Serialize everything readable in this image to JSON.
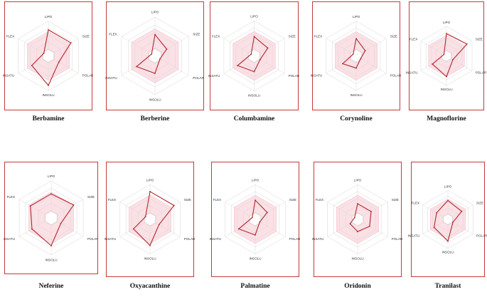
{
  "axes": [
    "LIPO",
    "SIZE",
    "POLAR",
    "INSOLU",
    "INSATU",
    "FLEX"
  ],
  "band": {
    "upper": [
      0.7,
      0.7,
      0.7,
      0.7,
      0.7,
      0.7
    ],
    "lower": [
      0.18,
      0.18,
      0.18,
      0.18,
      0.18,
      0.18
    ]
  },
  "chart_data": [
    {
      "type": "radar",
      "title": "Berbamine",
      "axes": [
        "LIPO",
        "SIZE",
        "POLAR",
        "INSOLU",
        "INSATU",
        "FLEX"
      ],
      "values": [
        0.75,
        0.75,
        0.35,
        0.85,
        0.55,
        0.15
      ]
    },
    {
      "type": "radar",
      "title": "Berberine",
      "axes": [
        "LIPO",
        "SIZE",
        "POLAR",
        "INSOLU",
        "INSATU",
        "FLEX"
      ],
      "values": [
        0.55,
        0.35,
        0.15,
        0.45,
        0.55,
        0.1
      ]
    },
    {
      "type": "radar",
      "title": "Columbamine",
      "axes": [
        "LIPO",
        "SIZE",
        "POLAR",
        "INSOLU",
        "INSATU",
        "FLEX"
      ],
      "values": [
        0.55,
        0.45,
        0.2,
        0.45,
        0.55,
        0.1
      ]
    },
    {
      "type": "radar",
      "title": "Corynoline",
      "axes": [
        "LIPO",
        "SIZE",
        "POLAR",
        "INSOLU",
        "INSATU",
        "FLEX"
      ],
      "values": [
        0.5,
        0.3,
        0.15,
        0.35,
        0.45,
        0.1
      ]
    },
    {
      "type": "radar",
      "title": "Magnoflorine",
      "axes": [
        "LIPO",
        "SIZE",
        "POLAR",
        "INSOLU",
        "INSATU",
        "FLEX"
      ],
      "values": [
        0.75,
        0.8,
        0.25,
        0.7,
        0.55,
        0.1
      ]
    },
    {
      "type": "radar",
      "title": "Neferine",
      "axes": [
        "LIPO",
        "SIZE",
        "POLAR",
        "INSOLU",
        "INSATU",
        "FLEX"
      ],
      "values": [
        0.65,
        0.7,
        0.3,
        0.75,
        0.6,
        0.65
      ]
    },
    {
      "type": "radar",
      "title": "Oxyacanthine",
      "axes": [
        "LIPO",
        "SIZE",
        "POLAR",
        "INSOLU",
        "INSATU",
        "FLEX"
      ],
      "values": [
        0.8,
        0.8,
        0.3,
        0.75,
        0.55,
        0.15
      ]
    },
    {
      "type": "radar",
      "title": "Palmatine",
      "axes": [
        "LIPO",
        "SIZE",
        "POLAR",
        "INSOLU",
        "INSATU",
        "FLEX"
      ],
      "values": [
        0.55,
        0.4,
        0.15,
        0.45,
        0.55,
        0.1
      ]
    },
    {
      "type": "radar",
      "title": "Oridonin",
      "axes": [
        "LIPO",
        "SIZE",
        "POLAR",
        "INSOLU",
        "INSATU",
        "FLEX"
      ],
      "values": [
        0.45,
        0.45,
        0.4,
        0.35,
        0.25,
        0.1
      ]
    },
    {
      "type": "radar",
      "title": "Tranilast",
      "axes": [
        "LIPO",
        "SIZE",
        "POLAR",
        "INSOLU",
        "INSATU",
        "FLEX"
      ],
      "values": [
        0.65,
        0.55,
        0.2,
        0.75,
        0.55,
        0.45
      ]
    }
  ]
}
